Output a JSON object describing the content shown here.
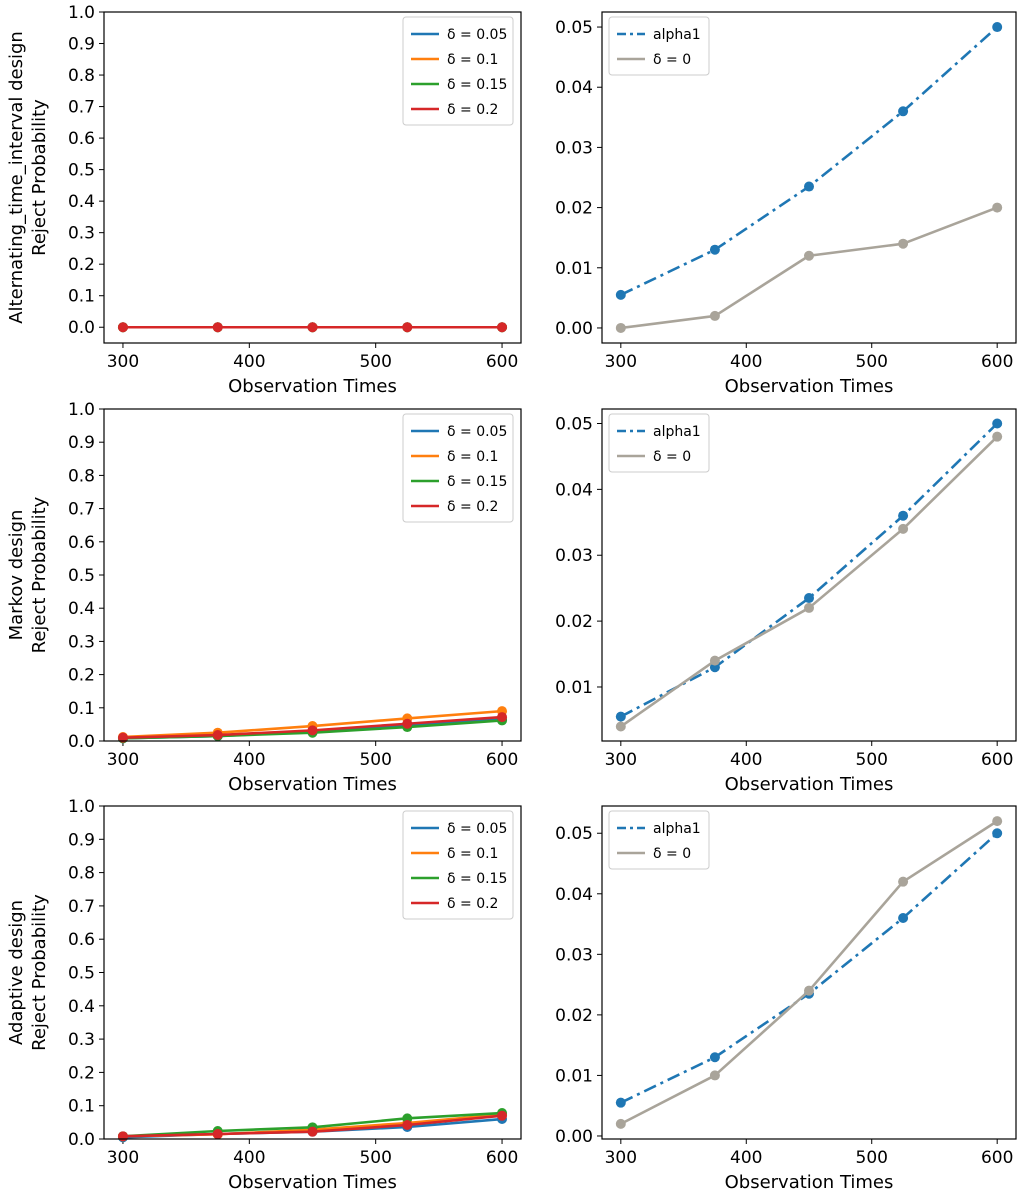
{
  "colors": {
    "d005": "#1f77b4",
    "d01": "#ff7f0e",
    "d015": "#2ca02c",
    "d02": "#d62728",
    "alpha1": "#1f77b4",
    "delta0": "#a9a49a"
  },
  "chart_data": [
    {
      "type": "line",
      "title": "",
      "ylabel_lines": [
        "Alternating_time_interval design",
        "Reject Probability"
      ],
      "xlabel": "Observation Times",
      "x": [
        300,
        375,
        450,
        525,
        600
      ],
      "xticks": [
        "300",
        "400",
        "500",
        "600"
      ],
      "xtick_values": [
        300,
        400,
        500,
        600
      ],
      "xlim": [
        285,
        615
      ],
      "ylim": [
        -0.05,
        1.0
      ],
      "yticks": [
        "0.0",
        "0.1",
        "0.2",
        "0.3",
        "0.4",
        "0.5",
        "0.6",
        "0.7",
        "0.8",
        "0.9",
        "1.0"
      ],
      "ytick_values": [
        0.0,
        0.1,
        0.2,
        0.3,
        0.4,
        0.5,
        0.6,
        0.7,
        0.8,
        0.9,
        1.0
      ],
      "legend_position": "top-right",
      "series": [
        {
          "name": "δ = 0.05",
          "color_key": "d005",
          "dash": false,
          "values": [
            0.0,
            0.0,
            0.0,
            0.0,
            0.0
          ]
        },
        {
          "name": "δ = 0.1",
          "color_key": "d01",
          "dash": false,
          "values": [
            0.0,
            0.0,
            0.0,
            0.0,
            0.0
          ]
        },
        {
          "name": "δ = 0.15",
          "color_key": "d015",
          "dash": false,
          "values": [
            0.0,
            0.0,
            0.0,
            0.0,
            0.0
          ]
        },
        {
          "name": "δ = 0.2",
          "color_key": "d02",
          "dash": false,
          "values": [
            0.0,
            0.0,
            0.0,
            0.0,
            0.0
          ]
        }
      ]
    },
    {
      "type": "line",
      "title": "",
      "ylabel_lines": [],
      "xlabel": "Observation Times",
      "x": [
        300,
        375,
        450,
        525,
        600
      ],
      "xticks": [
        "300",
        "400",
        "500",
        "600"
      ],
      "xtick_values": [
        300,
        400,
        500,
        600
      ],
      "xlim": [
        285,
        615
      ],
      "ylim": [
        -0.0025,
        0.0525
      ],
      "yticks": [
        "0.00",
        "0.01",
        "0.02",
        "0.03",
        "0.04",
        "0.05"
      ],
      "ytick_values": [
        0.0,
        0.01,
        0.02,
        0.03,
        0.04,
        0.05
      ],
      "legend_position": "top-left",
      "series": [
        {
          "name": "alpha1",
          "color_key": "alpha1",
          "dash": true,
          "values": [
            0.0055,
            0.013,
            0.0235,
            0.036,
            0.05
          ]
        },
        {
          "name": "δ = 0",
          "color_key": "delta0",
          "dash": false,
          "values": [
            0.0,
            0.002,
            0.012,
            0.014,
            0.02
          ]
        }
      ]
    },
    {
      "type": "line",
      "title": "",
      "ylabel_lines": [
        "Markov design",
        "Reject Probability"
      ],
      "xlabel": "Observation Times",
      "x": [
        300,
        375,
        450,
        525,
        600
      ],
      "xticks": [
        "300",
        "400",
        "500",
        "600"
      ],
      "xtick_values": [
        300,
        400,
        500,
        600
      ],
      "xlim": [
        285,
        615
      ],
      "ylim": [
        0.0,
        1.0
      ],
      "yticks": [
        "0.0",
        "0.1",
        "0.2",
        "0.3",
        "0.4",
        "0.5",
        "0.6",
        "0.7",
        "0.8",
        "0.9",
        "1.0"
      ],
      "ytick_values": [
        0.0,
        0.1,
        0.2,
        0.3,
        0.4,
        0.5,
        0.6,
        0.7,
        0.8,
        0.9,
        1.0
      ],
      "legend_position": "top-right",
      "series": [
        {
          "name": "δ = 0.05",
          "color_key": "d005",
          "dash": false,
          "values": [
            0.008,
            0.015,
            0.028,
            0.046,
            0.065
          ]
        },
        {
          "name": "δ = 0.1",
          "color_key": "d01",
          "dash": false,
          "values": [
            0.012,
            0.025,
            0.045,
            0.068,
            0.09
          ]
        },
        {
          "name": "δ = 0.15",
          "color_key": "d015",
          "dash": false,
          "values": [
            0.008,
            0.015,
            0.025,
            0.042,
            0.062
          ]
        },
        {
          "name": "δ = 0.2",
          "color_key": "d02",
          "dash": false,
          "values": [
            0.01,
            0.018,
            0.032,
            0.052,
            0.072
          ]
        }
      ]
    },
    {
      "type": "line",
      "title": "",
      "ylabel_lines": [],
      "xlabel": "Observation Times",
      "x": [
        300,
        375,
        450,
        525,
        600
      ],
      "xticks": [
        "300",
        "400",
        "500",
        "600"
      ],
      "xtick_values": [
        300,
        400,
        500,
        600
      ],
      "xlim": [
        285,
        615
      ],
      "ylim": [
        0.0018,
        0.0522
      ],
      "yticks": [
        "0.01",
        "0.02",
        "0.03",
        "0.04",
        "0.05"
      ],
      "ytick_values": [
        0.01,
        0.02,
        0.03,
        0.04,
        0.05
      ],
      "legend_position": "top-left",
      "series": [
        {
          "name": "alpha1",
          "color_key": "alpha1",
          "dash": true,
          "values": [
            0.0055,
            0.013,
            0.0235,
            0.036,
            0.05
          ]
        },
        {
          "name": "δ = 0",
          "color_key": "delta0",
          "dash": false,
          "values": [
            0.004,
            0.014,
            0.022,
            0.034,
            0.048
          ]
        }
      ]
    },
    {
      "type": "line",
      "title": "",
      "ylabel_lines": [
        "Adaptive design",
        "Reject Probability"
      ],
      "xlabel": "Observation Times",
      "x": [
        300,
        375,
        450,
        525,
        600
      ],
      "xticks": [
        "300",
        "400",
        "500",
        "600"
      ],
      "xtick_values": [
        300,
        400,
        500,
        600
      ],
      "xlim": [
        285,
        615
      ],
      "ylim": [
        0.0,
        1.0
      ],
      "yticks": [
        "0.0",
        "0.1",
        "0.2",
        "0.3",
        "0.4",
        "0.5",
        "0.6",
        "0.7",
        "0.8",
        "0.9",
        "1.0"
      ],
      "ytick_values": [
        0.0,
        0.1,
        0.2,
        0.3,
        0.4,
        0.5,
        0.6,
        0.7,
        0.8,
        0.9,
        1.0
      ],
      "legend_position": "top-right",
      "series": [
        {
          "name": "δ = 0.05",
          "color_key": "d005",
          "dash": false,
          "values": [
            0.005,
            0.015,
            0.022,
            0.036,
            0.06
          ]
        },
        {
          "name": "δ = 0.1",
          "color_key": "d01",
          "dash": false,
          "values": [
            0.008,
            0.014,
            0.028,
            0.048,
            0.074
          ]
        },
        {
          "name": "δ = 0.15",
          "color_key": "d015",
          "dash": false,
          "values": [
            0.008,
            0.024,
            0.035,
            0.062,
            0.078
          ]
        },
        {
          "name": "δ = 0.2",
          "color_key": "d02",
          "dash": false,
          "values": [
            0.008,
            0.015,
            0.022,
            0.042,
            0.07
          ]
        }
      ]
    },
    {
      "type": "line",
      "title": "",
      "ylabel_lines": [],
      "xlabel": "Observation Times",
      "x": [
        300,
        375,
        450,
        525,
        600
      ],
      "xticks": [
        "300",
        "400",
        "500",
        "600"
      ],
      "xtick_values": [
        300,
        400,
        500,
        600
      ],
      "xlim": [
        285,
        615
      ],
      "ylim": [
        -0.0005,
        0.0545
      ],
      "yticks": [
        "0.00",
        "0.01",
        "0.02",
        "0.03",
        "0.04",
        "0.05"
      ],
      "ytick_values": [
        0.0,
        0.01,
        0.02,
        0.03,
        0.04,
        0.05
      ],
      "legend_position": "top-left",
      "series": [
        {
          "name": "alpha1",
          "color_key": "alpha1",
          "dash": true,
          "values": [
            0.0055,
            0.013,
            0.0235,
            0.036,
            0.05
          ]
        },
        {
          "name": "δ = 0",
          "color_key": "delta0",
          "dash": false,
          "values": [
            0.002,
            0.01,
            0.024,
            0.042,
            0.052
          ]
        }
      ]
    }
  ]
}
